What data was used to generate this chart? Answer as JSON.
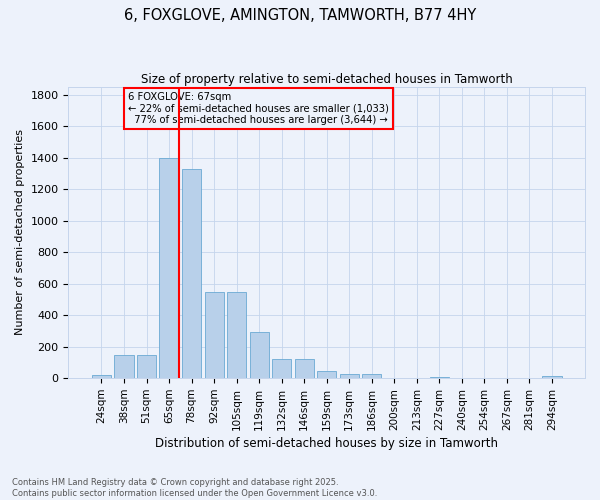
{
  "title": "6, FOXGLOVE, AMINGTON, TAMWORTH, B77 4HY",
  "subtitle": "Size of property relative to semi-detached houses in Tamworth",
  "xlabel": "Distribution of semi-detached houses by size in Tamworth",
  "ylabel": "Number of semi-detached properties",
  "categories": [
    "24sqm",
    "38sqm",
    "51sqm",
    "65sqm",
    "78sqm",
    "92sqm",
    "105sqm",
    "119sqm",
    "132sqm",
    "146sqm",
    "159sqm",
    "173sqm",
    "186sqm",
    "200sqm",
    "213sqm",
    "227sqm",
    "240sqm",
    "254sqm",
    "267sqm",
    "281sqm",
    "294sqm"
  ],
  "values": [
    20,
    145,
    145,
    1400,
    1330,
    550,
    550,
    295,
    120,
    120,
    45,
    25,
    25,
    0,
    0,
    8,
    0,
    0,
    0,
    0,
    12
  ],
  "bar_color": "#b8d0ea",
  "bar_edge_color": "#6aaad4",
  "property_label": "6 FOXGLOVE: 67sqm",
  "pct_smaller": 22,
  "count_smaller": 1033,
  "pct_larger": 77,
  "count_larger": 3644,
  "vline_bin_index": 3,
  "vline_color": "red",
  "annotation_box_color": "red",
  "ylim": [
    0,
    1850
  ],
  "yticks": [
    0,
    200,
    400,
    600,
    800,
    1000,
    1200,
    1400,
    1600,
    1800
  ],
  "footer": "Contains HM Land Registry data © Crown copyright and database right 2025.\nContains public sector information licensed under the Open Government Licence v3.0.",
  "background_color": "#edf2fb",
  "grid_color": "#c5d5ec"
}
